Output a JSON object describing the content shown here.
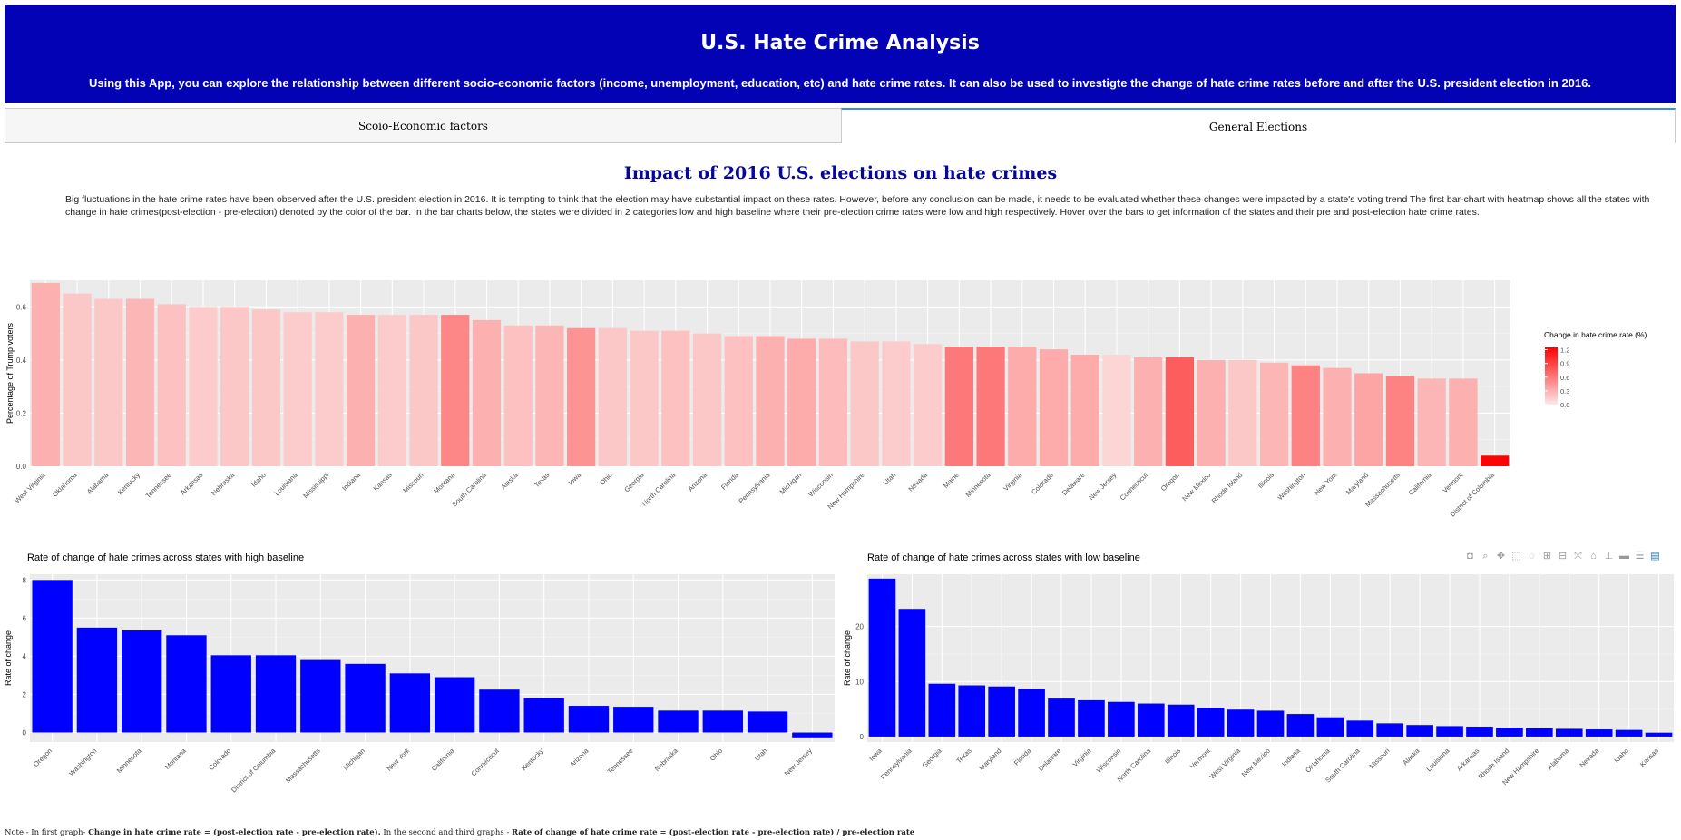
{
  "header": {
    "title": "U.S. Hate Crime Analysis",
    "subtitle": "Using this App, you can explore the relationship between different socio-economic factors (income, unemployment, education, etc) and hate crime rates. It can also be used to investigte the change of hate crime rates before and after the U.S. president election in 2016."
  },
  "tabs": [
    {
      "label": "Scoio-Economic factors",
      "active": false
    },
    {
      "label": "General Elections",
      "active": true
    }
  ],
  "section": {
    "title": "Impact of 2016 U.S. elections on hate crimes",
    "description": "Big fluctuations in the hate crime rates have been observed after the U.S. president election in 2016. It is tempting to think that the election may have substantial impact on these rates. However, before any conclusion can be made, it needs to be evaluated whether these changes were impacted by a state's voting trend The first bar-chart with heatmap shows all the states with change in hate crimes(post-election - pre-election) denoted by the color of the bar. In the bar charts below, the states were divided in 2 categories low and high baseline where their pre-election crime rates were low and high respectively. Hover over the bars to get information of the states and their pre and post-election hate crime rates."
  },
  "note": {
    "prefix": "Note - In first graph- ",
    "formula1": "Change in hate crime rate = (post-election rate - pre-election rate).",
    "middle": " In the second and third graphs - ",
    "formula2": "Rate of change of hate crime rate = (post-election rate - pre-election rate) / pre-election rate"
  },
  "modebar": [
    "camera-icon",
    "zoom-icon",
    "pan-icon",
    "box-select-icon",
    "lasso-icon",
    "zoom-in-icon",
    "zoom-out-icon",
    "autoscale-icon",
    "home-icon",
    "spike-icon",
    "hover-closest-icon",
    "hover-compare-icon",
    "plotly-logo-icon"
  ],
  "chart_data": [
    {
      "type": "bar",
      "title": "",
      "xlabel": "",
      "ylabel": "Percentage of Trump voters",
      "ylim": [
        0,
        0.7
      ],
      "yticks": [
        0.0,
        0.2,
        0.4,
        0.6
      ],
      "ytick_labels": [
        "0.0",
        "0.2",
        "0.4",
        "0.6"
      ],
      "color_scale": {
        "low": "#fce8e8",
        "high": "#ff0000",
        "min": 0,
        "max": 1.25
      },
      "colorbar": {
        "title": "Change in hate crime rate (%)",
        "ticks": [
          "0.0",
          "0.3",
          "0.6",
          "0.9",
          "1.2"
        ],
        "tick_values": [
          0,
          0.3,
          0.6,
          0.9,
          1.2
        ]
      },
      "categories": [
        "West Virginia",
        "Oklahoma",
        "Alabama",
        "Kentucky",
        "Tennessee",
        "Arkansas",
        "Nebraska",
        "Idaho",
        "Louisiana",
        "Mississippi",
        "Indiana",
        "Kansas",
        "Missouri",
        "Montana",
        "South Carolina",
        "Alaska",
        "Texas",
        "Iowa",
        "Ohio",
        "Georgia",
        "North Carolina",
        "Arizona",
        "Florida",
        "Pennsylvania",
        "Michigan",
        "Wisconsin",
        "New Hampshire",
        "Utah",
        "Nevada",
        "Maine",
        "Minnesota",
        "Virginia",
        "Colorado",
        "Delaware",
        "New Jersey",
        "Connecticut",
        "Oregon",
        "New Mexico",
        "Rhode Island",
        "Illinois",
        "Washington",
        "New York",
        "Maryland",
        "Massachusetts",
        "California",
        "Vermont",
        "District of Columbia"
      ],
      "values": [
        0.69,
        0.65,
        0.63,
        0.63,
        0.61,
        0.6,
        0.6,
        0.59,
        0.58,
        0.58,
        0.57,
        0.57,
        0.57,
        0.57,
        0.55,
        0.53,
        0.53,
        0.52,
        0.52,
        0.51,
        0.51,
        0.5,
        0.49,
        0.49,
        0.48,
        0.48,
        0.47,
        0.47,
        0.46,
        0.45,
        0.45,
        0.45,
        0.44,
        0.42,
        0.42,
        0.41,
        0.41,
        0.4,
        0.4,
        0.39,
        0.38,
        0.37,
        0.35,
        0.34,
        0.33,
        0.33,
        0.04
      ],
      "color_values": [
        0.3,
        0.18,
        0.18,
        0.27,
        0.21,
        0.15,
        0.18,
        0.18,
        0.15,
        0.15,
        0.3,
        0.15,
        0.18,
        0.52,
        0.3,
        0.21,
        0.27,
        0.45,
        0.18,
        0.18,
        0.21,
        0.18,
        0.21,
        0.3,
        0.33,
        0.24,
        0.18,
        0.15,
        0.15,
        0.6,
        0.6,
        0.33,
        0.33,
        0.33,
        0.1,
        0.3,
        0.75,
        0.3,
        0.18,
        0.27,
        0.55,
        0.3,
        0.36,
        0.55,
        0.27,
        0.3,
        1.24
      ]
    },
    {
      "type": "bar",
      "title": "Rate of change of hate crimes across states with high baseline",
      "xlabel": "",
      "ylabel": "Rate of change",
      "ylim": [
        -0.5,
        8.3
      ],
      "yticks": [
        0,
        2,
        4,
        6,
        8
      ],
      "ytick_labels": [
        "0",
        "2",
        "4",
        "6",
        "8"
      ],
      "color": "#0000ff",
      "categories": [
        "Oregon",
        "Washington",
        "Minnesota",
        "Montana",
        "Colorado",
        "District of Columbia",
        "Massachusetts",
        "Michigan",
        "New York",
        "California",
        "Connecticut",
        "Kentucky",
        "Arizona",
        "Tennessee",
        "Nebraska",
        "Ohio",
        "Utah",
        "New Jersey"
      ],
      "values": [
        8.0,
        5.5,
        5.35,
        5.1,
        4.05,
        4.05,
        3.8,
        3.6,
        3.1,
        2.9,
        2.25,
        1.8,
        1.4,
        1.35,
        1.15,
        1.15,
        1.1,
        -0.3
      ]
    },
    {
      "type": "bar",
      "title": "Rate of change of hate crimes across states with low baseline",
      "xlabel": "",
      "ylabel": "Rate of change",
      "ylim": [
        -1,
        29.5
      ],
      "yticks": [
        0,
        10,
        20
      ],
      "ytick_labels": [
        "0",
        "10",
        "20"
      ],
      "color": "#0000ff",
      "categories": [
        "Iowa",
        "Pennsylvania",
        "Georgia",
        "Texas",
        "Maryland",
        "Florida",
        "Delaware",
        "Virginia",
        "Wisconsin",
        "North Carolina",
        "Illinois",
        "Vermont",
        "West Virginia",
        "New Mexico",
        "Indiana",
        "Oklahoma",
        "South Carolina",
        "Missouri",
        "Alaska",
        "Louisiana",
        "Arkansas",
        "Rhode Island",
        "New Hampshire",
        "Alabama",
        "Nevada",
        "Idaho",
        "Kansas"
      ],
      "values": [
        28.7,
        23.2,
        9.6,
        9.3,
        9.1,
        8.7,
        6.9,
        6.6,
        6.3,
        6.0,
        5.8,
        5.2,
        4.9,
        4.7,
        4.1,
        3.5,
        2.9,
        2.4,
        2.1,
        1.9,
        1.8,
        1.6,
        1.5,
        1.4,
        1.3,
        1.2,
        0.7
      ]
    }
  ]
}
